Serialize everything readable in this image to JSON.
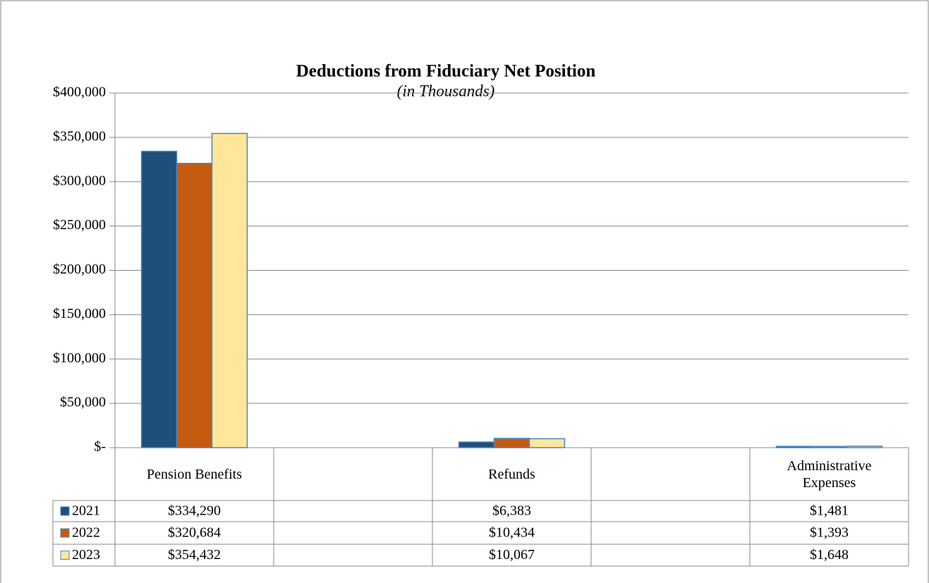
{
  "chart_data": {
    "type": "bar",
    "title": "Deductions from Fiduciary Net Position",
    "subtitle": "(in Thousands)",
    "categories": [
      "Pension Benefits",
      null,
      "Refunds",
      null,
      "Administrative Expenses"
    ],
    "series": [
      {
        "name": "2021",
        "color": "#1f4e79",
        "values": [
          334290,
          null,
          6383,
          null,
          1481
        ],
        "value_labels": [
          "$334,290",
          null,
          "$6,383",
          null,
          "$1,481"
        ]
      },
      {
        "name": "2022",
        "color": "#c55a11",
        "values": [
          320684,
          null,
          10434,
          null,
          1393
        ],
        "value_labels": [
          "$320,684",
          null,
          "$10,434",
          null,
          "$1,393"
        ]
      },
      {
        "name": "2023",
        "color": "#ffe699",
        "values": [
          354432,
          null,
          10067,
          null,
          1648
        ],
        "value_labels": [
          "$354,432",
          null,
          "$10,067",
          null,
          "$1,648"
        ]
      }
    ],
    "ylim": [
      0,
      400000
    ],
    "yticks": [
      {
        "value": 0,
        "label": "$-"
      },
      {
        "value": 50000,
        "label": "$50,000"
      },
      {
        "value": 100000,
        "label": "$100,000"
      },
      {
        "value": 150000,
        "label": "$150,000"
      },
      {
        "value": 200000,
        "label": "$200,000"
      },
      {
        "value": 250000,
        "label": "$250,000"
      },
      {
        "value": 300000,
        "label": "$300,000"
      },
      {
        "value": 350000,
        "label": "$350,000"
      },
      {
        "value": 400000,
        "label": "$400,000"
      }
    ],
    "grid": true,
    "legend": "table"
  }
}
